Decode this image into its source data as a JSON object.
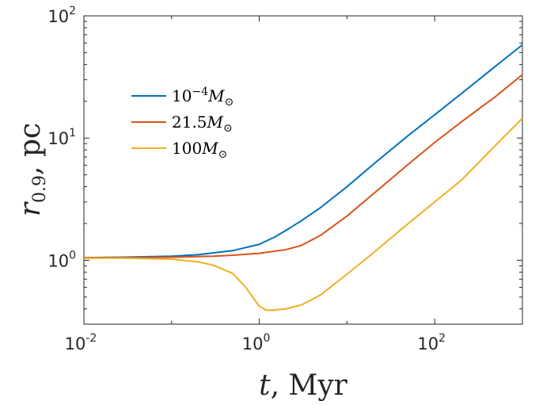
{
  "chart_data": {
    "type": "line",
    "title": "",
    "xlabel": "t, Myr",
    "xlabel_parts": {
      "var": "t",
      "rest": ", Myr"
    },
    "ylabel": "r0.9, pc",
    "ylabel_parts": {
      "var": "r",
      "sub": "0.9",
      "rest": ", pc"
    },
    "xscale": "log",
    "yscale": "log",
    "xlim": [
      0.01,
      1000
    ],
    "ylim": [
      0.3,
      100
    ],
    "grid": false,
    "legend_position": "upper-left",
    "x_ticks": [
      {
        "base": "10",
        "exp": "-2"
      },
      {
        "base": "10",
        "exp": "0"
      },
      {
        "base": "10",
        "exp": "2"
      }
    ],
    "y_ticks": [
      {
        "base": "10",
        "exp": "0"
      },
      {
        "base": "10",
        "exp": "1"
      },
      {
        "base": "10",
        "exp": "2"
      }
    ],
    "series": [
      {
        "name": "10^-4 M☉",
        "label": {
          "base": "10",
          "exp": "−4",
          "sym": "M",
          "sub": "⊙"
        },
        "color": "#0072BD",
        "x": [
          0.01,
          0.03,
          0.1,
          0.2,
          0.5,
          1,
          1.5,
          2,
          3,
          5,
          10,
          20,
          50,
          100,
          200,
          500,
          1000
        ],
        "y": [
          1.05,
          1.06,
          1.08,
          1.11,
          1.2,
          1.35,
          1.55,
          1.75,
          2.1,
          2.7,
          4.0,
          6.1,
          10.5,
          15.5,
          23,
          39,
          58
        ]
      },
      {
        "name": "21.5 M☉",
        "label": {
          "base": "21.5",
          "exp": "",
          "sym": "M",
          "sub": "⊙"
        },
        "color": "#D95319",
        "x": [
          0.01,
          0.03,
          0.1,
          0.3,
          0.5,
          1,
          2,
          3,
          5,
          10,
          20,
          50,
          100,
          200,
          500,
          1000
        ],
        "y": [
          1.05,
          1.05,
          1.06,
          1.08,
          1.1,
          1.14,
          1.22,
          1.32,
          1.6,
          2.3,
          3.5,
          6.1,
          9.2,
          13.5,
          22,
          33
        ]
      },
      {
        "name": "100 M☉",
        "label": {
          "base": "100",
          "exp": "",
          "sym": "M",
          "sub": "⊙"
        },
        "color": "#EDB120",
        "x": [
          0.01,
          0.03,
          0.1,
          0.2,
          0.3,
          0.5,
          0.7,
          1.0,
          1.2,
          1.4,
          2,
          3,
          5,
          10,
          20,
          50,
          100,
          200,
          500,
          1000
        ],
        "y": [
          1.04,
          1.04,
          1.02,
          0.97,
          0.91,
          0.78,
          0.6,
          0.42,
          0.39,
          0.39,
          0.4,
          0.43,
          0.52,
          0.77,
          1.15,
          2.0,
          3.0,
          4.5,
          8.8,
          14.5
        ]
      }
    ]
  }
}
